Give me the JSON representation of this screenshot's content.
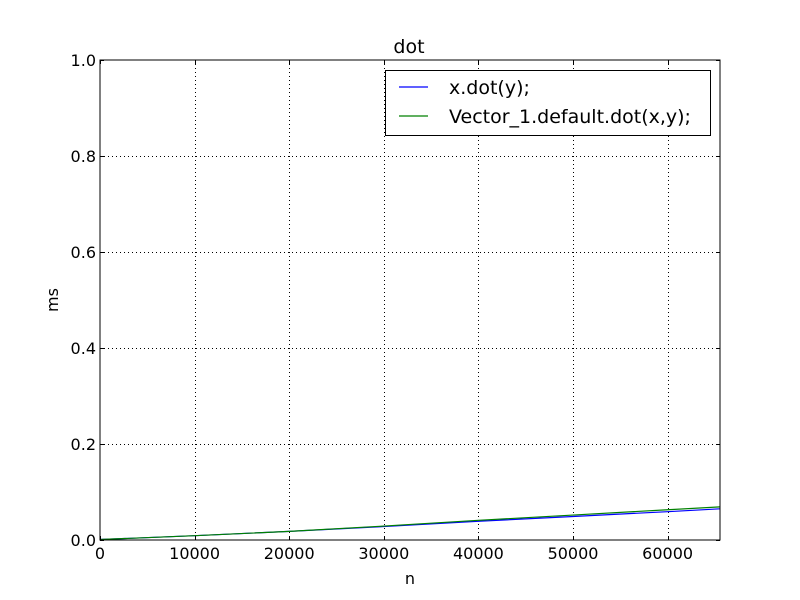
{
  "chart_data": {
    "type": "line",
    "title": "dot",
    "xlabel": "n",
    "ylabel": "ms",
    "xlim": [
      0,
      65536
    ],
    "ylim": [
      0,
      1.0
    ],
    "xticks": [
      0,
      10000,
      20000,
      30000,
      40000,
      50000,
      60000
    ],
    "xtick_labels": [
      "0",
      "10000",
      "20000",
      "30000",
      "40000",
      "50000",
      "60000"
    ],
    "yticks": [
      0.0,
      0.2,
      0.4,
      0.6,
      0.8,
      1.0
    ],
    "ytick_labels": [
      "0.0",
      "0.2",
      "0.4",
      "0.6",
      "0.8",
      "1.0"
    ],
    "grid": true,
    "legend_position": "top-right",
    "series": [
      {
        "name": "x.dot(y);",
        "color": "#0000ff",
        "x": [
          0,
          10000,
          20000,
          30000,
          40000,
          50000,
          60000,
          65536
        ],
        "y": [
          0.001,
          0.009,
          0.018,
          0.028,
          0.039,
          0.049,
          0.059,
          0.065
        ]
      },
      {
        "name": "Vector_1.default.dot(x,y);",
        "color": "#008000",
        "x": [
          0,
          10000,
          20000,
          30000,
          40000,
          50000,
          60000,
          65536
        ],
        "y": [
          0.001,
          0.009,
          0.018,
          0.029,
          0.041,
          0.052,
          0.063,
          0.069
        ]
      }
    ]
  }
}
